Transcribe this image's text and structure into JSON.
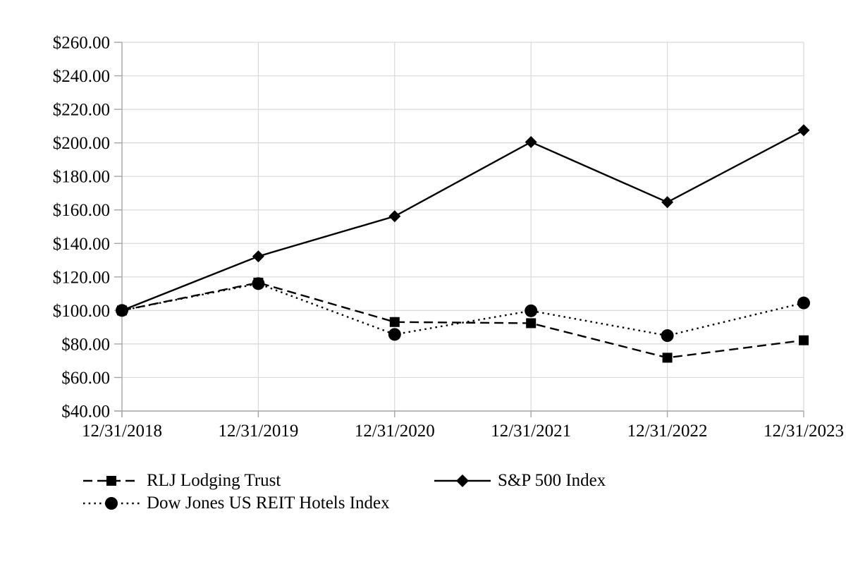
{
  "chart_data": {
    "type": "line",
    "title": "",
    "xlabel": "",
    "ylabel": "",
    "categories": [
      "12/31/2018",
      "12/31/2019",
      "12/31/2020",
      "12/31/2021",
      "12/31/2022",
      "12/31/2023"
    ],
    "ylim": [
      40,
      260
    ],
    "ytick_step": 20,
    "ytick_labels": [
      "$260.00",
      "$240.00",
      "$220.00",
      "$200.00",
      "$180.00",
      "$160.00",
      "$140.00",
      "$120.00",
      "$100.00",
      "$80.00",
      "$60.00",
      "$40.00"
    ],
    "grid": true,
    "legend_position": "bottom",
    "series": [
      {
        "name": "RLJ Lodging Trust",
        "line": "dashed",
        "marker": "square",
        "values": [
          100.0,
          116.6,
          93.1,
          92.4,
          71.8,
          82.2
        ]
      },
      {
        "name": "S&P 500 Index",
        "line": "solid",
        "marker": "diamond",
        "values": [
          100.0,
          132.3,
          156.2,
          200.5,
          164.6,
          207.5
        ]
      },
      {
        "name": "Dow Jones US REIT Hotels Index",
        "line": "dotted",
        "marker": "circle",
        "values": [
          100.0,
          116.0,
          85.7,
          99.8,
          85.0,
          104.5
        ]
      }
    ],
    "colors": {
      "series": "#000000",
      "gridline": "#d9d9d9",
      "axis": "#a6a6a6",
      "background": "#ffffff"
    }
  }
}
